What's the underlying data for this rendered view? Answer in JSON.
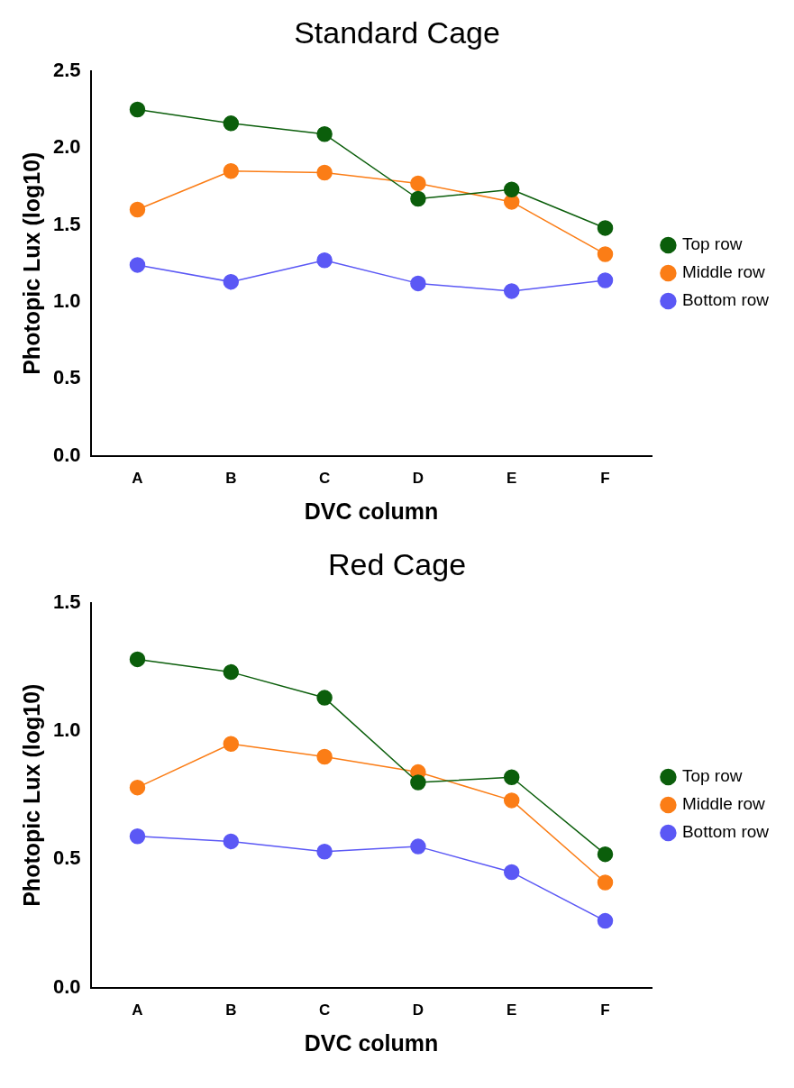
{
  "chart_data": [
    {
      "type": "line",
      "title": "Standard Cage",
      "xlabel": "DVC column",
      "ylabel": "Photopic Lux (log10)",
      "categories": [
        "A",
        "B",
        "C",
        "D",
        "E",
        "F"
      ],
      "ylim": [
        0,
        2.5
      ],
      "yticks": [
        {
          "value": 0,
          "label": "0.0"
        },
        {
          "value": 0.5,
          "label": "0.5"
        },
        {
          "value": 1,
          "label": "1.0"
        },
        {
          "value": 1.5,
          "label": "1.5"
        },
        {
          "value": 2,
          "label": "2.0"
        },
        {
          "value": 2.5,
          "label": "2.5"
        }
      ],
      "grid": false,
      "legend": "right",
      "marker": "circle",
      "line_style": "solid",
      "series": [
        {
          "name": "Top row",
          "color": "#0b5e0b",
          "values": [
            2.25,
            2.16,
            2.09,
            1.67,
            1.73,
            1.48
          ]
        },
        {
          "name": "Middle row",
          "color": "#fb7d16",
          "values": [
            1.6,
            1.85,
            1.84,
            1.77,
            1.65,
            1.31
          ]
        },
        {
          "name": "Bottom row",
          "color": "#5b58f5",
          "values": [
            1.24,
            1.13,
            1.27,
            1.12,
            1.07,
            1.14
          ]
        }
      ]
    },
    {
      "type": "line",
      "title": "Red Cage",
      "xlabel": "DVC column",
      "ylabel": "Photopic Lux (log10)",
      "categories": [
        "A",
        "B",
        "C",
        "D",
        "E",
        "F"
      ],
      "ylim": [
        0,
        1.5
      ],
      "yticks": [
        {
          "value": 0,
          "label": "0.0"
        },
        {
          "value": 0.5,
          "label": "0.5"
        },
        {
          "value": 1,
          "label": "1.0"
        },
        {
          "value": 1.5,
          "label": "1.5"
        }
      ],
      "grid": false,
      "legend": "right",
      "marker": "circle",
      "line_style": "solid",
      "series": [
        {
          "name": "Top row",
          "color": "#0b5e0b",
          "values": [
            1.28,
            1.23,
            1.13,
            0.8,
            0.82,
            0.52
          ]
        },
        {
          "name": "Middle row",
          "color": "#fb7d16",
          "values": [
            0.78,
            0.95,
            0.9,
            0.84,
            0.73,
            0.41
          ]
        },
        {
          "name": "Bottom row",
          "color": "#5b58f5",
          "values": [
            0.59,
            0.57,
            0.53,
            0.55,
            0.45,
            0.26
          ]
        }
      ]
    }
  ]
}
